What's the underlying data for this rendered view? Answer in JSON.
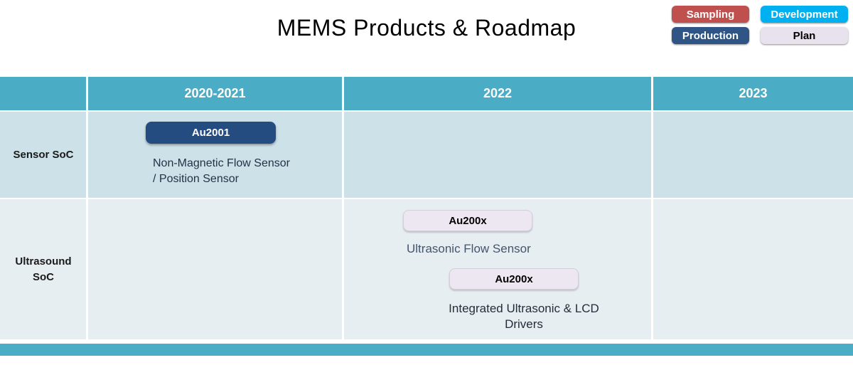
{
  "title": "MEMS Products & Roadmap",
  "legend": {
    "items": [
      {
        "label": "Sampling",
        "color": "#C0504D",
        "text_color": "#ffffff"
      },
      {
        "label": "Development",
        "color": "#00B0F0",
        "text_color": "#ffffff"
      },
      {
        "label": "Production",
        "color": "#2E5586",
        "text_color": "#ffffff"
      },
      {
        "label": "Plan",
        "color": "#E8E2EE",
        "text_color": "#000000"
      }
    ]
  },
  "table": {
    "columns": [
      "",
      "2020-2021",
      "2022",
      "2023"
    ],
    "rows": [
      {
        "label": "Sensor SoC",
        "entries": [
          {
            "badge": "Au2001",
            "badge_color": "#254C80",
            "status": "Production",
            "column": "2020-2021",
            "description_lines": [
              "Non-Magnetic Flow Sensor",
              "/ Position Sensor"
            ]
          }
        ]
      },
      {
        "label": "Ultrasound SoC",
        "entries": [
          {
            "badge": "Au200x",
            "badge_color": "#EDE7F2",
            "status": "Plan",
            "column": "2022",
            "description_lines": [
              "Ultrasonic Flow Sensor"
            ]
          },
          {
            "badge": "Au200x",
            "badge_color": "#EDE7F2",
            "status": "Plan",
            "column": "2022",
            "description_lines": [
              "Integrated Ultrasonic & LCD",
              "Drivers"
            ]
          }
        ]
      }
    ]
  },
  "colors": {
    "header_teal": "#4BACC6",
    "row_sensor_bg": "#CDE1E9",
    "row_ultrasound_bg": "#E7EEF2",
    "accent_bar": "#4BACC6",
    "description_dark": "#233345",
    "description_slate": "#44546A"
  }
}
